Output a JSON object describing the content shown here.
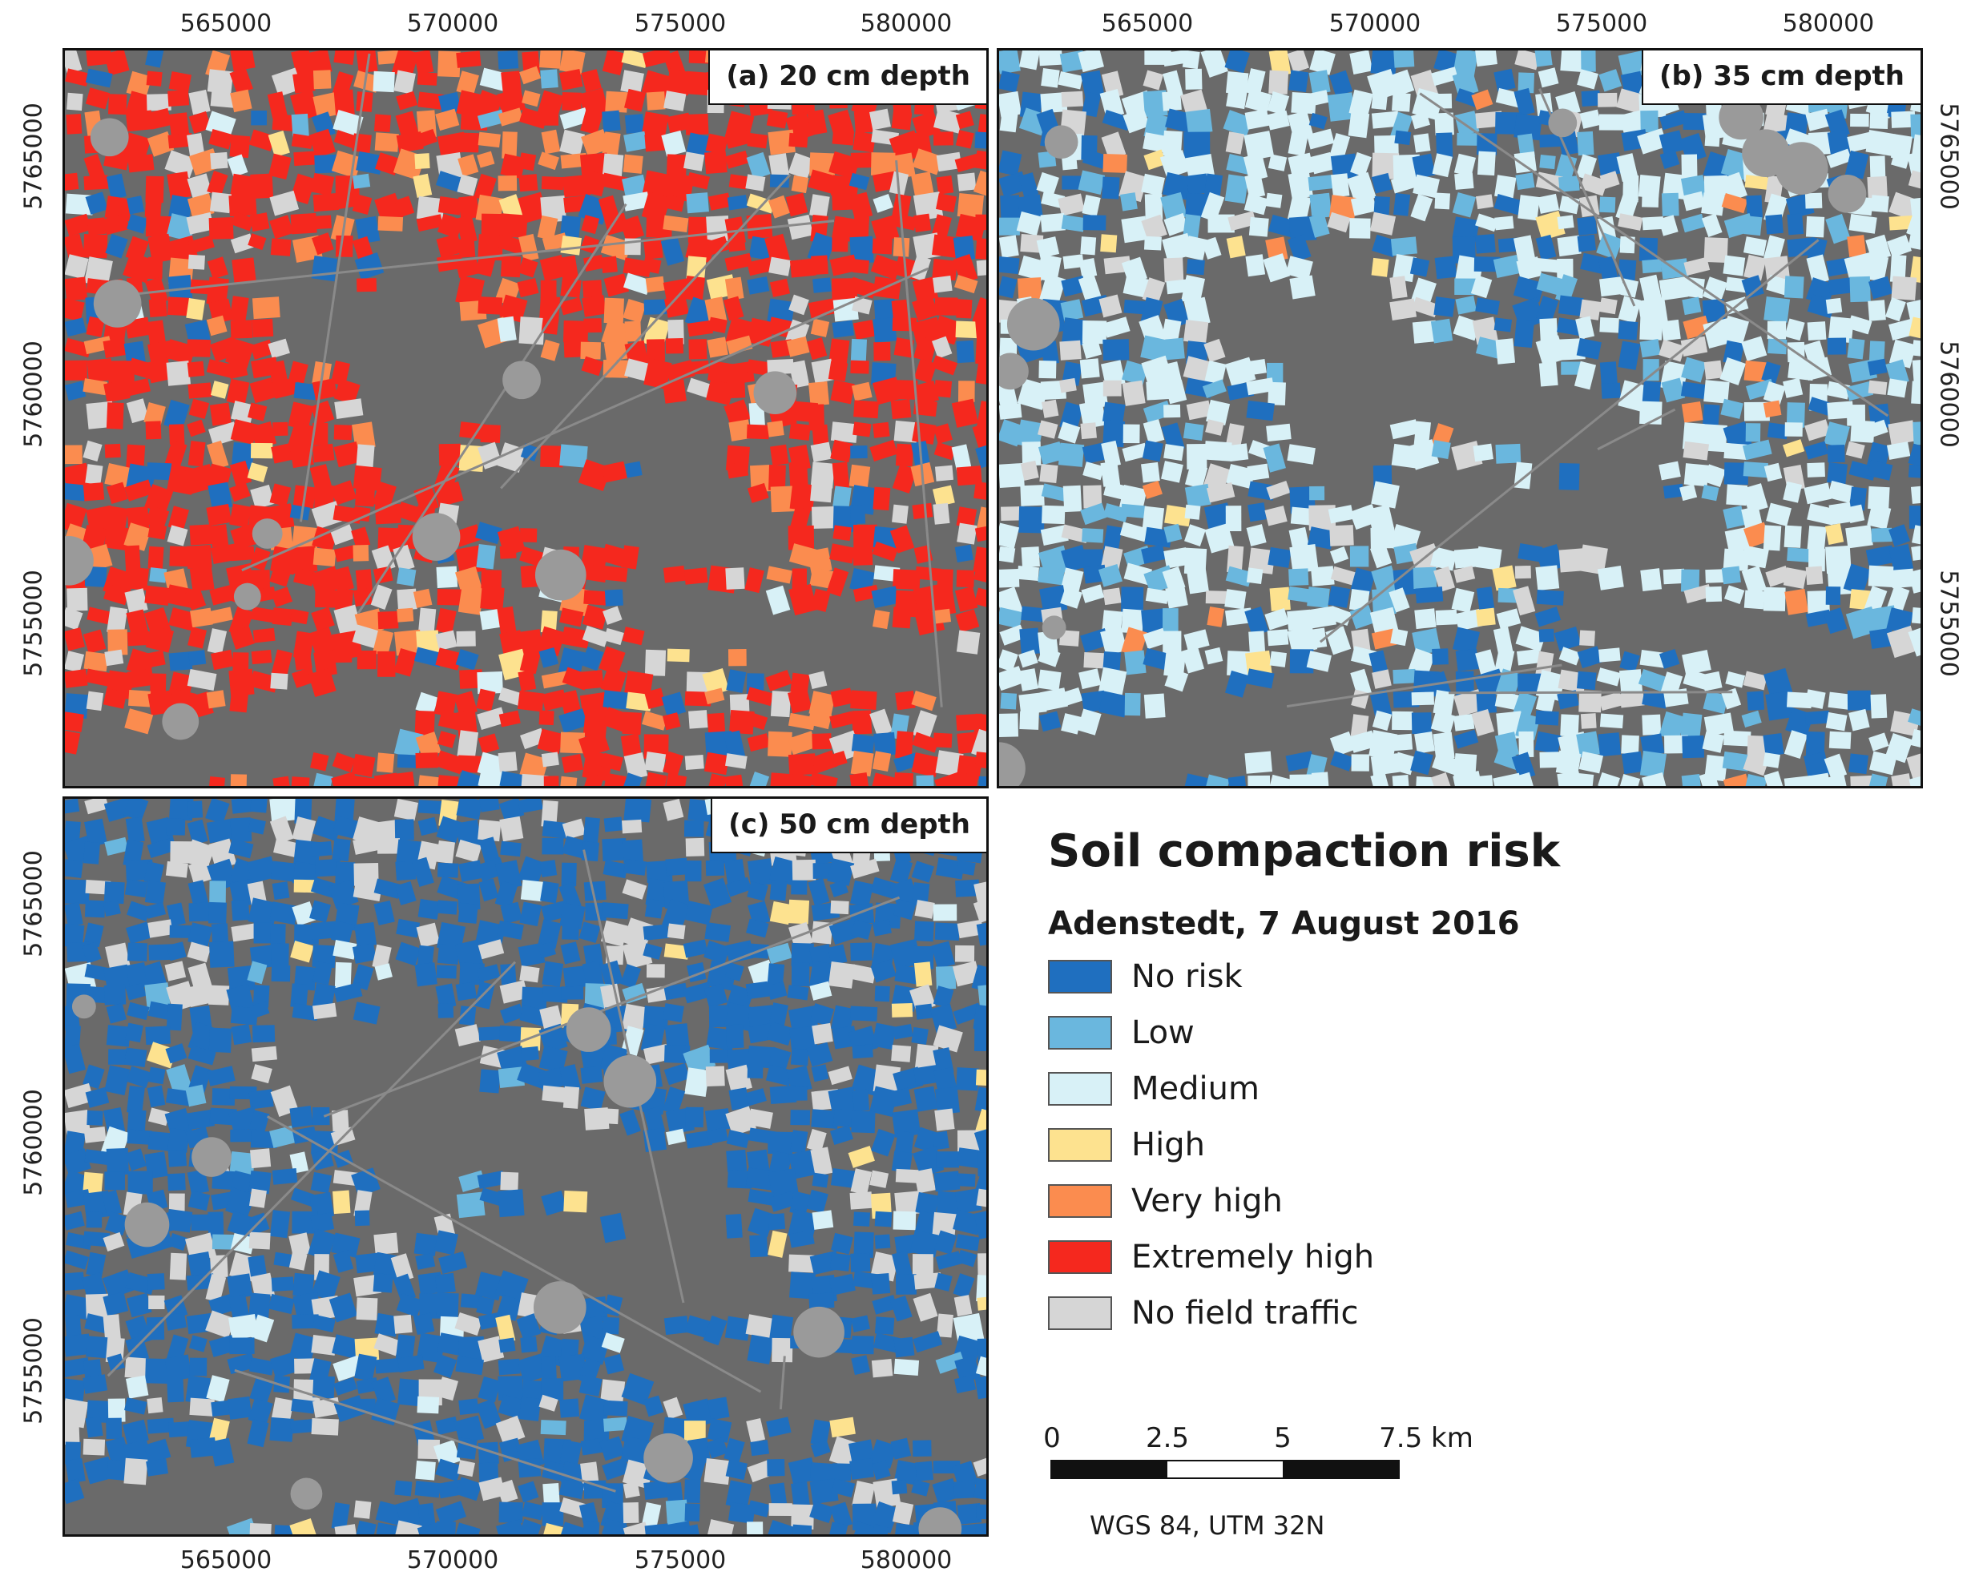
{
  "panels": [
    {
      "id": "a",
      "label": "(a) 20 cm depth"
    },
    {
      "id": "b",
      "label": "(b) 35 cm depth"
    },
    {
      "id": "c",
      "label": "(c) 50 cm depth"
    }
  ],
  "axis": {
    "x_ticks": [
      "565000",
      "570000",
      "575000",
      "580000"
    ],
    "y_ticks": [
      "5765000",
      "5760000",
      "5755000"
    ]
  },
  "legend": {
    "title": "Soil compaction risk",
    "subtitle": "Adenstedt, 7 August 2016",
    "classes": [
      {
        "label": "No risk",
        "color": "#1f6fbf"
      },
      {
        "label": "Low",
        "color": "#6ab7de"
      },
      {
        "label": "Medium",
        "color": "#d8f1f7"
      },
      {
        "label": "High",
        "color": "#fde28f"
      },
      {
        "label": "Very high",
        "color": "#fb8c4f"
      },
      {
        "label": "Extremely high",
        "color": "#f5281e"
      },
      {
        "label": "No field traffic",
        "color": "#d6d6d6"
      }
    ]
  },
  "scalebar": {
    "labels": [
      "0",
      "2.5",
      "5",
      "7.5 km"
    ]
  },
  "crs": "WGS 84, UTM 32N",
  "colors": {
    "background_terrain": "#6a6a6a",
    "no_risk": "#1f6fbf",
    "low": "#6ab7de",
    "medium": "#d8f1f7",
    "high": "#fde28f",
    "very_high": "#fb8c4f",
    "extremely_high": "#f5281e",
    "no_field_traffic": "#d6d6d6"
  }
}
